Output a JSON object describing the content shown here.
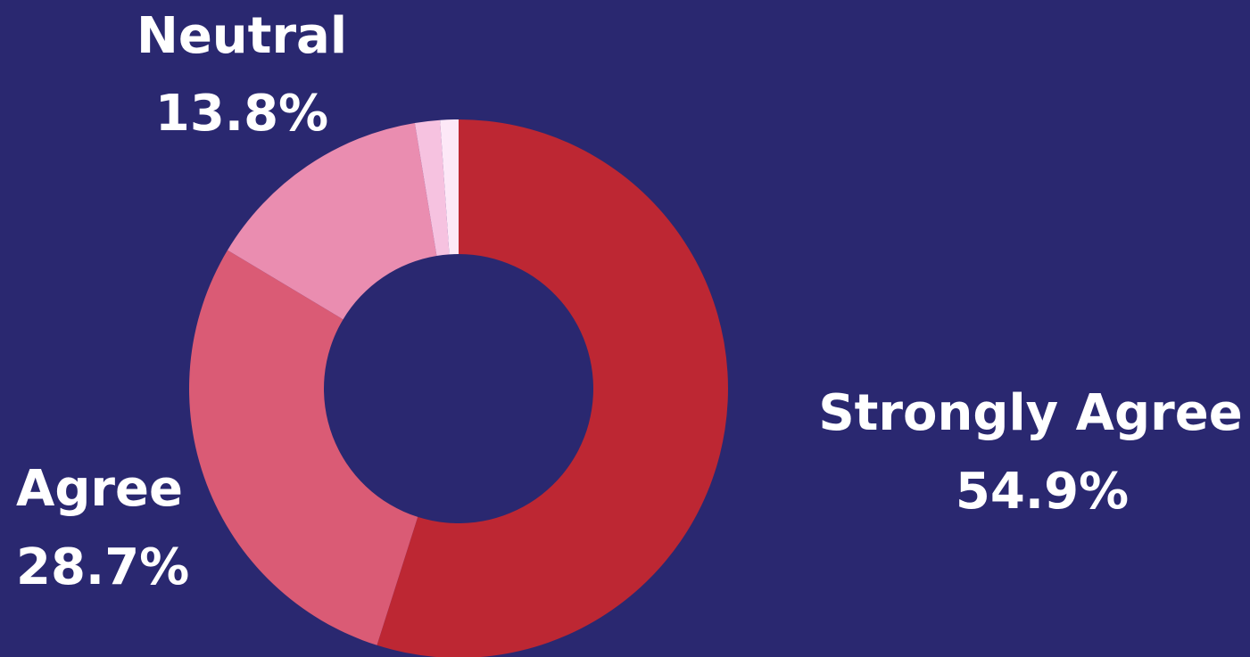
{
  "background_color": "#2a2870",
  "chart_data": {
    "type": "pie",
    "variant": "donut",
    "title": "",
    "slices": [
      {
        "label": "Strongly Agree",
        "value_label": "54.9%",
        "value": 54.9,
        "color": "#bd2733"
      },
      {
        "label": "Agree",
        "value_label": "28.7%",
        "value": 28.7,
        "color": "#da5b75"
      },
      {
        "label": "Neutral",
        "value_label": "13.8%",
        "value": 13.8,
        "color": "#ea8db0"
      },
      {
        "label": "",
        "value_label": "",
        "value": 1.5,
        "color": "#f6c2e0"
      },
      {
        "label": "",
        "value_label": "",
        "value": 1.1,
        "color": "#fde8f7"
      }
    ],
    "start": "top",
    "direction": "clockwise",
    "legend": "none"
  }
}
